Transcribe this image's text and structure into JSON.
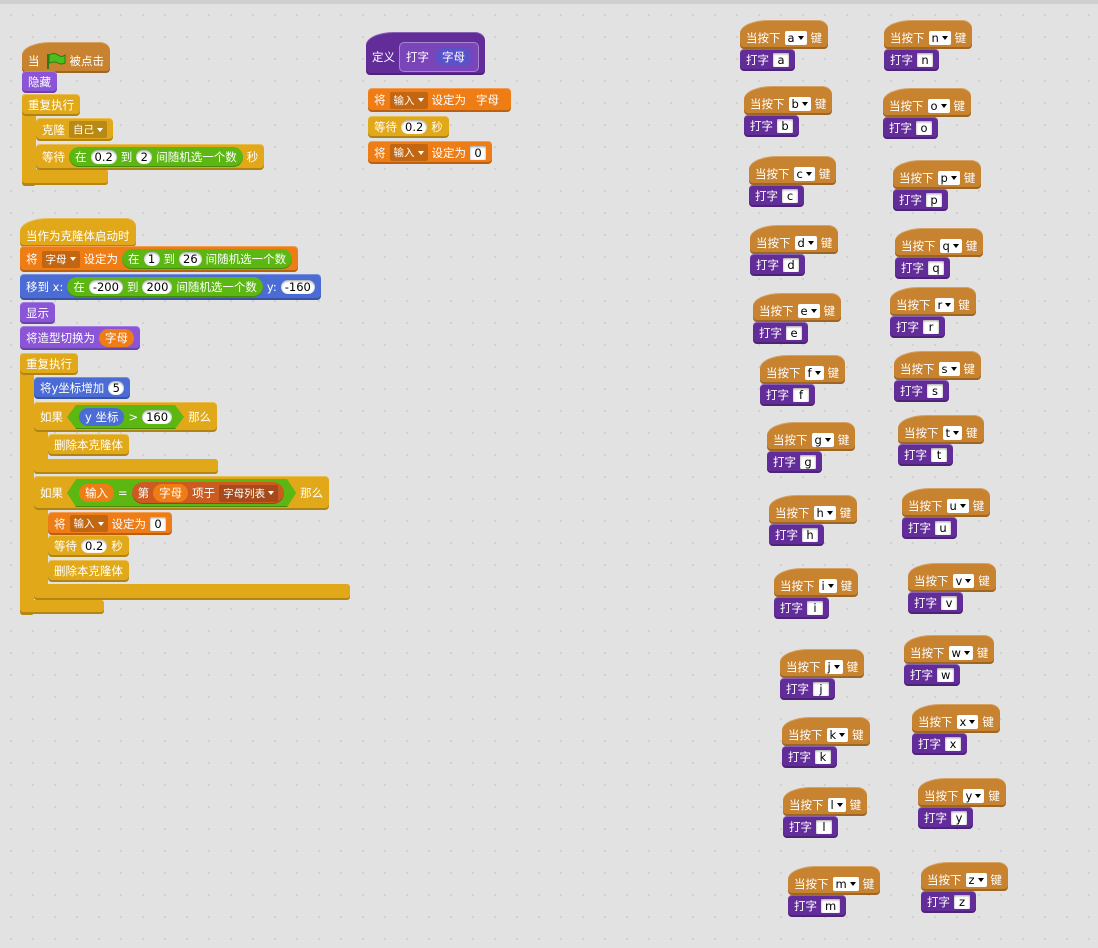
{
  "scripts": [
    {
      "blocks": [
        [
          "当",
          "被点击"
        ],
        [
          "隐藏"
        ],
        [
          "重复执行"
        ],
        [
          "克隆",
          "自己"
        ],
        [
          "等待",
          "在",
          "0.2",
          "到",
          "2",
          "间随机选一个数",
          "秒"
        ]
      ]
    },
    {
      "blocks": [
        [
          "当作为克隆体启动时"
        ],
        [
          "将",
          "字母",
          "设定为",
          "在",
          "1",
          "到",
          "26",
          "间随机选一个数"
        ],
        [
          "移到 x:",
          "在",
          "-200",
          "到",
          "200",
          "间随机选一个数",
          "y:",
          "-160"
        ],
        [
          "显示"
        ],
        [
          "将造型切换为",
          "字母"
        ],
        [
          "重复执行"
        ],
        [
          "将y坐标增加",
          "5"
        ],
        [
          "如果",
          "y 坐标",
          ">",
          "160",
          "那么"
        ],
        [
          "删除本克隆体"
        ],
        [
          "如果",
          "输入",
          "=",
          "第",
          "字母",
          "项于",
          "字母列表",
          "那么"
        ],
        [
          "将",
          "输入",
          "设定为",
          "0"
        ],
        [
          "等待",
          "0.2",
          "秒"
        ],
        [
          "删除本克隆体"
        ]
      ]
    },
    {
      "blocks": [
        [
          "定义",
          "打字",
          "字母"
        ],
        [
          "将",
          "输入",
          "设定为",
          "字母"
        ],
        [
          "等待",
          "0.2",
          "秒"
        ],
        [
          "将",
          "输入",
          "设定为",
          "0"
        ]
      ]
    }
  ],
  "key_scripts": [
    {
      "when": [
        "当按下",
        "a",
        "键"
      ],
      "call": [
        "打字",
        "a"
      ]
    },
    {
      "when": [
        "当按下",
        "b",
        "键"
      ],
      "call": [
        "打字",
        "b"
      ]
    },
    {
      "when": [
        "当按下",
        "c",
        "键"
      ],
      "call": [
        "打字",
        "c"
      ]
    },
    {
      "when": [
        "当按下",
        "d",
        "键"
      ],
      "call": [
        "打字",
        "d"
      ]
    },
    {
      "when": [
        "当按下",
        "e",
        "键"
      ],
      "call": [
        "打字",
        "e"
      ]
    },
    {
      "when": [
        "当按下",
        "f",
        "键"
      ],
      "call": [
        "打字",
        "f"
      ]
    },
    {
      "when": [
        "当按下",
        "g",
        "键"
      ],
      "call": [
        "打字",
        "g"
      ]
    },
    {
      "when": [
        "当按下",
        "h",
        "键"
      ],
      "call": [
        "打字",
        "h"
      ]
    },
    {
      "when": [
        "当按下",
        "i",
        "键"
      ],
      "call": [
        "打字",
        "i"
      ]
    },
    {
      "when": [
        "当按下",
        "j",
        "键"
      ],
      "call": [
        "打字",
        "j"
      ]
    },
    {
      "when": [
        "当按下",
        "k",
        "键"
      ],
      "call": [
        "打字",
        "k"
      ]
    },
    {
      "when": [
        "当按下",
        "l",
        "键"
      ],
      "call": [
        "打字",
        "l"
      ]
    },
    {
      "when": [
        "当按下",
        "m",
        "键"
      ],
      "call": [
        "打字",
        "m"
      ]
    },
    {
      "when": [
        "当按下",
        "n",
        "键"
      ],
      "call": [
        "打字",
        "n"
      ]
    },
    {
      "when": [
        "当按下",
        "o",
        "键"
      ],
      "call": [
        "打字",
        "o"
      ]
    },
    {
      "when": [
        "当按下",
        "p",
        "键"
      ],
      "call": [
        "打字",
        "p"
      ]
    },
    {
      "when": [
        "当按下",
        "q",
        "键"
      ],
      "call": [
        "打字",
        "q"
      ]
    },
    {
      "when": [
        "当按下",
        "r",
        "键"
      ],
      "call": [
        "打字",
        "r"
      ]
    },
    {
      "when": [
        "当按下",
        "s",
        "键"
      ],
      "call": [
        "打字",
        "s"
      ]
    },
    {
      "when": [
        "当按下",
        "t",
        "键"
      ],
      "call": [
        "打字",
        "t"
      ]
    },
    {
      "when": [
        "当按下",
        "u",
        "键"
      ],
      "call": [
        "打字",
        "u"
      ]
    },
    {
      "when": [
        "当按下",
        "v",
        "键"
      ],
      "call": [
        "打字",
        "v"
      ]
    },
    {
      "when": [
        "当按下",
        "w",
        "键"
      ],
      "call": [
        "打字",
        "w"
      ]
    },
    {
      "when": [
        "当按下",
        "x",
        "键"
      ],
      "call": [
        "打字",
        "x"
      ]
    },
    {
      "when": [
        "当按下",
        "y",
        "键"
      ],
      "call": [
        "打字",
        "y"
      ]
    },
    {
      "when": [
        "当按下",
        "z",
        "键"
      ],
      "call": [
        "打字",
        "z"
      ]
    }
  ]
}
